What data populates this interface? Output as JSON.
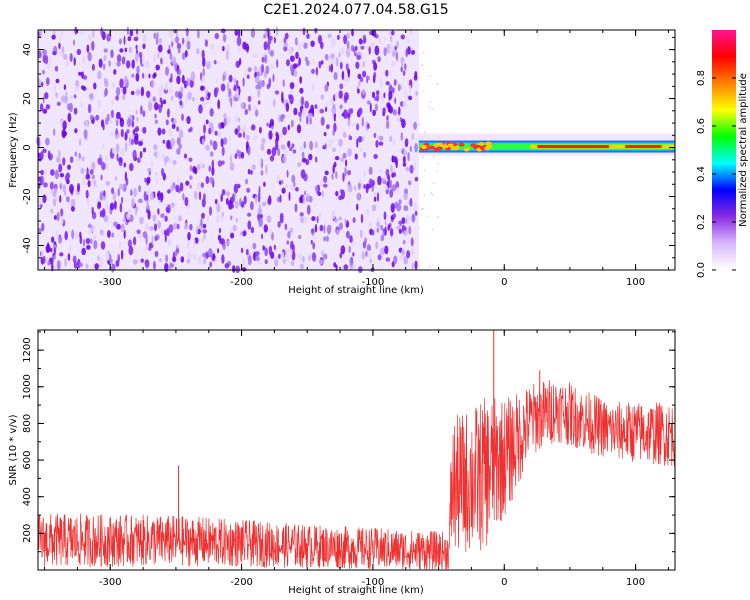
{
  "title": "C2E1.2024.077.04.58.G15",
  "chart_data": [
    {
      "type": "heatmap",
      "xlabel": "Height of straight line (km)",
      "ylabel": "Frequency (Hz)",
      "xlim": [
        -355,
        130
      ],
      "ylim": [
        -50,
        48
      ],
      "x_ticks": [
        -300,
        -200,
        -100,
        0,
        100
      ],
      "y_ticks": [
        -40,
        -20,
        0,
        20,
        40
      ],
      "colorbar": {
        "label": "Normalized spectral amplitude",
        "range": [
          0,
          1
        ],
        "ticks": [
          0.0,
          0.2,
          0.4,
          0.6,
          0.8
        ],
        "colors": [
          "#ffffff",
          "#d9b8ff",
          "#8a2be2",
          "#0000ff",
          "#00ffff",
          "#00ff00",
          "#ffff00",
          "#ff8000",
          "#ff0000",
          "#ff1493"
        ]
      },
      "noise_region": {
        "x": [
          -355,
          -65
        ],
        "y": [
          -50,
          48
        ],
        "level": 0.1
      },
      "signal_band": {
        "x": [
          -65,
          130
        ],
        "center_hz": [
          0,
          0
        ],
        "peak": 1.0
      },
      "grid": false
    },
    {
      "type": "line",
      "xlabel": "Height of straight line (km)",
      "ylabel": "SNR (10 * v/v)",
      "xlim": [
        -355,
        130
      ],
      "ylim": [
        0,
        1310
      ],
      "x_ticks": [
        -300,
        -200,
        -100,
        0,
        100
      ],
      "y_ticks": [
        200,
        400,
        600,
        800,
        1000,
        1200
      ],
      "color": "#f03030",
      "envelope": [
        {
          "x": -355,
          "mean": 160,
          "spread": 150
        },
        {
          "x": -250,
          "mean": 160,
          "spread": 140
        },
        {
          "x": -150,
          "mean": 130,
          "spread": 120
        },
        {
          "x": -42,
          "mean": 100,
          "spread": 110
        },
        {
          "x": -40,
          "mean": 450,
          "spread": 380
        },
        {
          "x": -15,
          "mean": 520,
          "spread": 420
        },
        {
          "x": 5,
          "mean": 650,
          "spread": 300
        },
        {
          "x": 20,
          "mean": 820,
          "spread": 200
        },
        {
          "x": 40,
          "mean": 880,
          "spread": 180
        },
        {
          "x": 80,
          "mean": 760,
          "spread": 160
        },
        {
          "x": 130,
          "mean": 740,
          "spread": 180
        }
      ],
      "spikes": [
        {
          "x": -248,
          "y": 570
        },
        {
          "x": -8,
          "y": 1310
        },
        {
          "x": 27,
          "y": 1090
        }
      ],
      "grid": false
    }
  ]
}
